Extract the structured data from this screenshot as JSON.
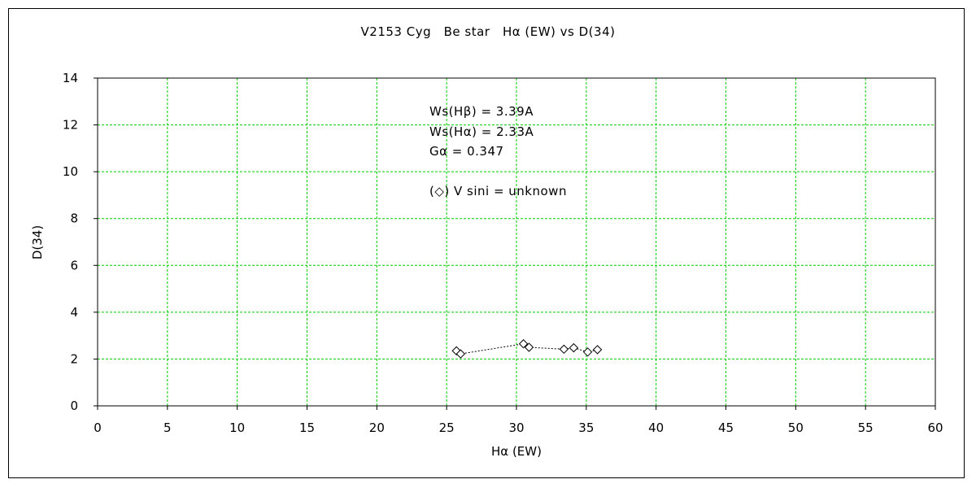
{
  "chart_data": {
    "type": "scatter",
    "title": "V2153 Cyg　Be star　Hα (EW) vs D(34)",
    "xlabel": "Hα (EW)",
    "ylabel": "D(34)",
    "xlim": [
      0,
      60
    ],
    "ylim": [
      0,
      14
    ],
    "xticks": [
      0,
      5,
      10,
      15,
      20,
      25,
      30,
      35,
      40,
      45,
      50,
      55,
      60
    ],
    "yticks": [
      0,
      2,
      4,
      6,
      8,
      10,
      12,
      14
    ],
    "grid": true,
    "grid_color": "#00cc00",
    "series": [
      {
        "marker": "diamond",
        "connected": true,
        "line_style": "dotted",
        "color": "#000000",
        "points": [
          {
            "x": 25.7,
            "y": 2.35
          },
          {
            "x": 26.0,
            "y": 2.22
          },
          {
            "x": 30.5,
            "y": 2.65
          },
          {
            "x": 30.9,
            "y": 2.5
          },
          {
            "x": 33.4,
            "y": 2.42
          },
          {
            "x": 34.1,
            "y": 2.48
          },
          {
            "x": 35.1,
            "y": 2.3
          },
          {
            "x": 35.8,
            "y": 2.4
          }
        ]
      }
    ],
    "annotations": [
      "Ws(Hβ) = 3.39A",
      "Ws(Hα) = 2.33A",
      "Gα = 0.347",
      "(◇) V sini = unknown"
    ]
  }
}
